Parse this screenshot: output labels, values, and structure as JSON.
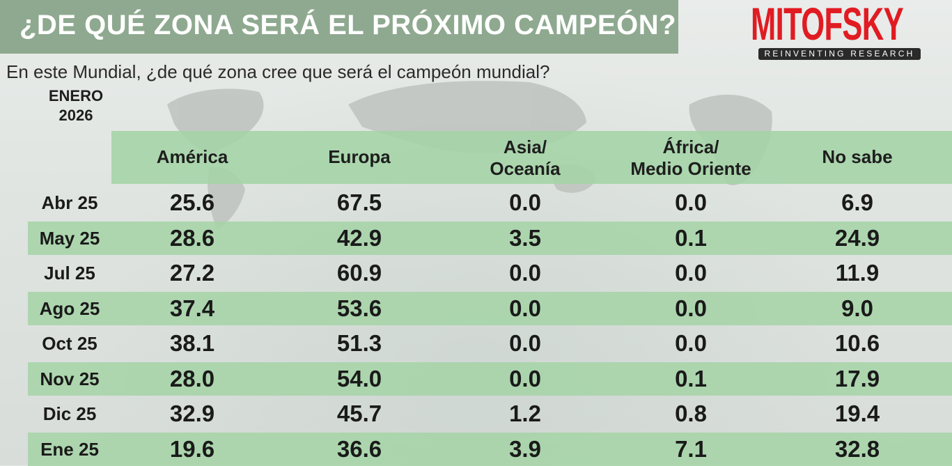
{
  "header": {
    "title": "¿DE QUÉ ZONA SERÁ EL PRÓXIMO CAMPEÓN?",
    "brand": "MITOFSKY",
    "tagline": "REINVENTING RESEARCH"
  },
  "question": "En este Mundial, ¿de qué zona cree que será el campeón mundial?",
  "period": {
    "month": "ENERO",
    "year": "2026"
  },
  "colors": {
    "title_band": "#8ea98f",
    "header_band": "#a4d4a6",
    "row_shade": "#a4d4a6",
    "brand_red": "#e11b22"
  },
  "chart_data": {
    "type": "table",
    "columns": [
      {
        "line1": "América",
        "line2": ""
      },
      {
        "line1": "Europa",
        "line2": ""
      },
      {
        "line1": "Asia/",
        "line2": "Oceanía"
      },
      {
        "line1": "África/",
        "line2": "Medio Oriente"
      },
      {
        "line1": "No sabe",
        "line2": ""
      }
    ],
    "rows": [
      {
        "label": "Abr 25",
        "values": [
          "25.6",
          "67.5",
          "0.0",
          "0.0",
          "6.9"
        ]
      },
      {
        "label": "May 25",
        "values": [
          "28.6",
          "42.9",
          "3.5",
          "0.1",
          "24.9"
        ]
      },
      {
        "label": "Jul 25",
        "values": [
          "27.2",
          "60.9",
          "0.0",
          "0.0",
          "11.9"
        ]
      },
      {
        "label": "Ago 25",
        "values": [
          "37.4",
          "53.6",
          "0.0",
          "0.0",
          "9.0"
        ]
      },
      {
        "label": "Oct 25",
        "values": [
          "38.1",
          "51.3",
          "0.0",
          "0.0",
          "10.6"
        ]
      },
      {
        "label": "Nov 25",
        "values": [
          "28.0",
          "54.0",
          "0.0",
          "0.1",
          "17.9"
        ]
      },
      {
        "label": "Dic 25",
        "values": [
          "32.9",
          "45.7",
          "1.2",
          "0.8",
          "19.4"
        ]
      },
      {
        "label": "Ene 25",
        "values": [
          "19.6",
          "36.6",
          "3.9",
          "7.1",
          "32.8"
        ]
      }
    ]
  }
}
